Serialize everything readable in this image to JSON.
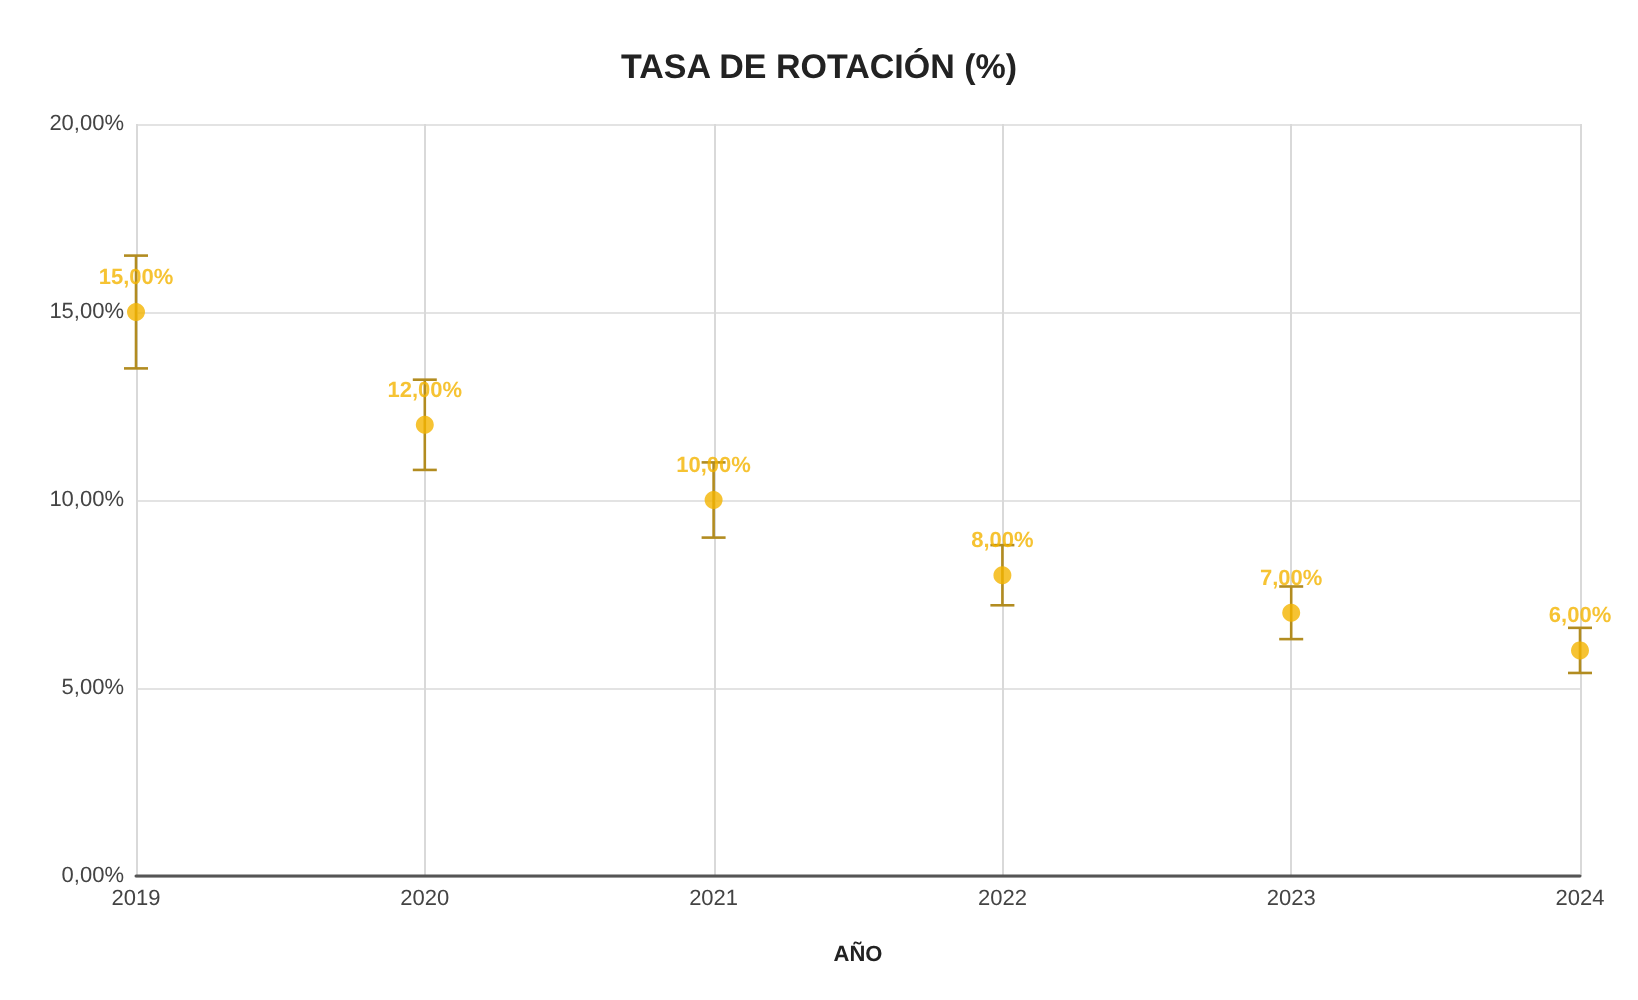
{
  "chart_data": {
    "type": "scatter",
    "title": "TASA DE ROTACIÓN (%)",
    "xlabel": "AÑO",
    "categories": [
      "2019",
      "2020",
      "2021",
      "2022",
      "2023",
      "2024"
    ],
    "values": [
      15,
      12,
      10,
      8,
      7,
      6
    ],
    "errors": [
      1.5,
      1.2,
      1,
      0.8,
      0.7,
      0.6
    ],
    "value_labels": [
      "15,00%",
      "12,00%",
      "10,00%",
      "8,00%",
      "7,00%",
      "6,00%"
    ],
    "color": "#f4b400",
    "marker": "circle",
    "ylim": [
      0,
      20
    ],
    "yticks": [
      {
        "value": 0,
        "label": "0,00%"
      },
      {
        "value": 5,
        "label": "5,00%"
      },
      {
        "value": 10,
        "label": "10,00%"
      },
      {
        "value": 15,
        "label": "15,00%"
      },
      {
        "value": 20,
        "label": "20,00%"
      }
    ],
    "grid": true
  }
}
